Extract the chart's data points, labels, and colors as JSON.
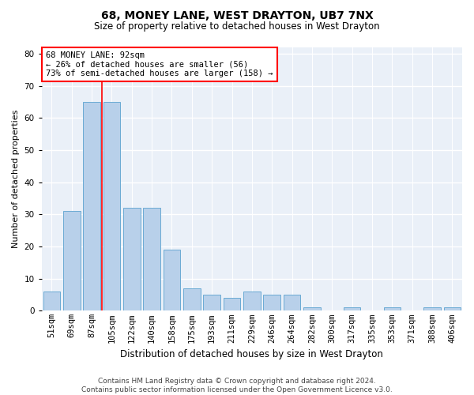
{
  "title1": "68, MONEY LANE, WEST DRAYTON, UB7 7NX",
  "title2": "Size of property relative to detached houses in West Drayton",
  "xlabel": "Distribution of detached houses by size in West Drayton",
  "ylabel": "Number of detached properties",
  "footer1": "Contains HM Land Registry data © Crown copyright and database right 2024.",
  "footer2": "Contains public sector information licensed under the Open Government Licence v3.0.",
  "annotation_line1": "68 MONEY LANE: 92sqm",
  "annotation_line2": "← 26% of detached houses are smaller (56)",
  "annotation_line3": "73% of semi-detached houses are larger (158) →",
  "bins": [
    "51sqm",
    "69sqm",
    "87sqm",
    "105sqm",
    "122sqm",
    "140sqm",
    "158sqm",
    "175sqm",
    "193sqm",
    "211sqm",
    "229sqm",
    "246sqm",
    "264sqm",
    "282sqm",
    "300sqm",
    "317sqm",
    "335sqm",
    "353sqm",
    "371sqm",
    "388sqm",
    "406sqm"
  ],
  "values": [
    6,
    31,
    65,
    65,
    32,
    32,
    19,
    7,
    5,
    4,
    6,
    5,
    5,
    1,
    0,
    1,
    0,
    1,
    0,
    1,
    1
  ],
  "bar_color": "#b8d0ea",
  "bar_edge_color": "#6aaad4",
  "red_line_x": 2.5,
  "ylim": [
    0,
    82
  ],
  "yticks": [
    0,
    10,
    20,
    30,
    40,
    50,
    60,
    70,
    80
  ],
  "bg_color": "#eaf0f8",
  "grid_color": "#ffffff",
  "title1_fontsize": 10,
  "title2_fontsize": 8.5,
  "ylabel_fontsize": 8,
  "xlabel_fontsize": 8.5,
  "tick_fontsize": 7.5,
  "footer_fontsize": 6.5,
  "ann_fontsize": 7.5
}
